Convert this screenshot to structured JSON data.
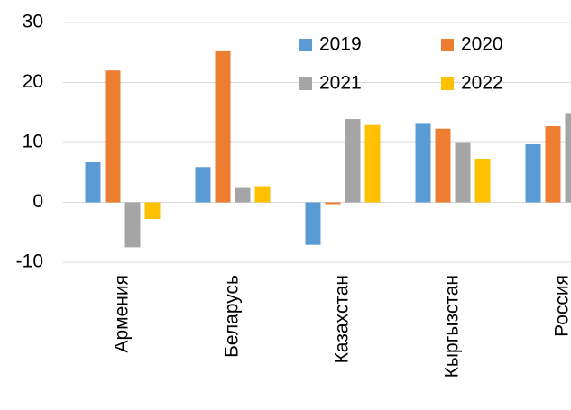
{
  "chart_data": {
    "type": "bar",
    "categories": [
      "Армения",
      "Беларусь",
      "Казахстан",
      "Кыргызстан",
      "Россия"
    ],
    "series": [
      {
        "name": "2019",
        "color": "#5b9bd5",
        "values": [
          6.7,
          5.9,
          -7.1,
          13.1,
          9.7
        ]
      },
      {
        "name": "2020",
        "color": "#ed7d31",
        "values": [
          22,
          25.2,
          -0.3,
          12.3,
          12.7
        ]
      },
      {
        "name": "2021",
        "color": "#a5a5a5",
        "values": [
          -7.5,
          2.4,
          13.9,
          9.9,
          14.9
        ]
      },
      {
        "name": "2022",
        "color": "#ffc000",
        "values": [
          -2.8,
          2.7,
          12.9,
          7.2,
          null
        ]
      }
    ],
    "ylim": [
      -10,
      30
    ],
    "yticks": [
      -10,
      0,
      10,
      20,
      30
    ],
    "grid": true,
    "legend": "top-right"
  }
}
